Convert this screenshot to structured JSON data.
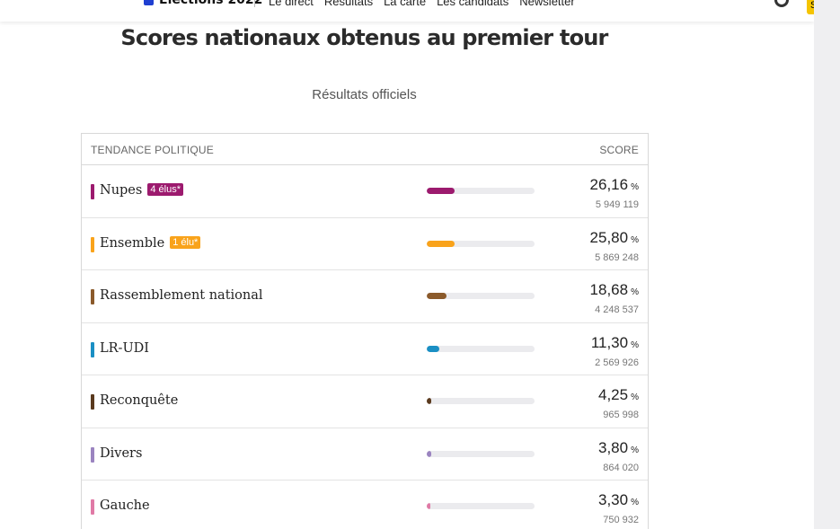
{
  "nav": {
    "brand": "Élections 2022",
    "links": [
      "Le direct",
      "Résultats",
      "La carte",
      "Les candidats",
      "Newsletter"
    ],
    "button_partial": "S'a"
  },
  "title": "Scores nationaux obtenus au premier tour",
  "subtitle": "Résultats officiels",
  "table": {
    "col_left": "TENDANCE POLITIQUE",
    "col_right": "SCORE",
    "rows": [
      {
        "name": "Nupes",
        "badge": "4 élus*",
        "pct": "26,16",
        "unit": "%",
        "votes": "5 949 119",
        "fraction": 0.2616,
        "color": "#9c1a6e"
      },
      {
        "name": "Ensemble",
        "badge": "1 élu*",
        "pct": "25,80",
        "unit": "%",
        "votes": "5 869 248",
        "fraction": 0.258,
        "color": "#f9a31b"
      },
      {
        "name": "Rassemblement national",
        "badge": "",
        "pct": "18,68",
        "unit": "%",
        "votes": "4 248 537",
        "fraction": 0.1868,
        "color": "#8b5a2b"
      },
      {
        "name": "LR-UDI",
        "badge": "",
        "pct": "11,30",
        "unit": "%",
        "votes": "2 569 926",
        "fraction": 0.113,
        "color": "#1a8fc4"
      },
      {
        "name": "Reconquête",
        "badge": "",
        "pct": "4,25",
        "unit": "%",
        "votes": "965 998",
        "fraction": 0.0425,
        "color": "#5a3a1e"
      },
      {
        "name": "Divers",
        "badge": "",
        "pct": "3,80",
        "unit": "%",
        "votes": "864 020",
        "fraction": 0.038,
        "color": "#9b84c0"
      },
      {
        "name": "Gauche",
        "badge": "",
        "pct": "3,30",
        "unit": "%",
        "votes": "750 932",
        "fraction": 0.033,
        "color": "#e07aa6"
      }
    ]
  }
}
